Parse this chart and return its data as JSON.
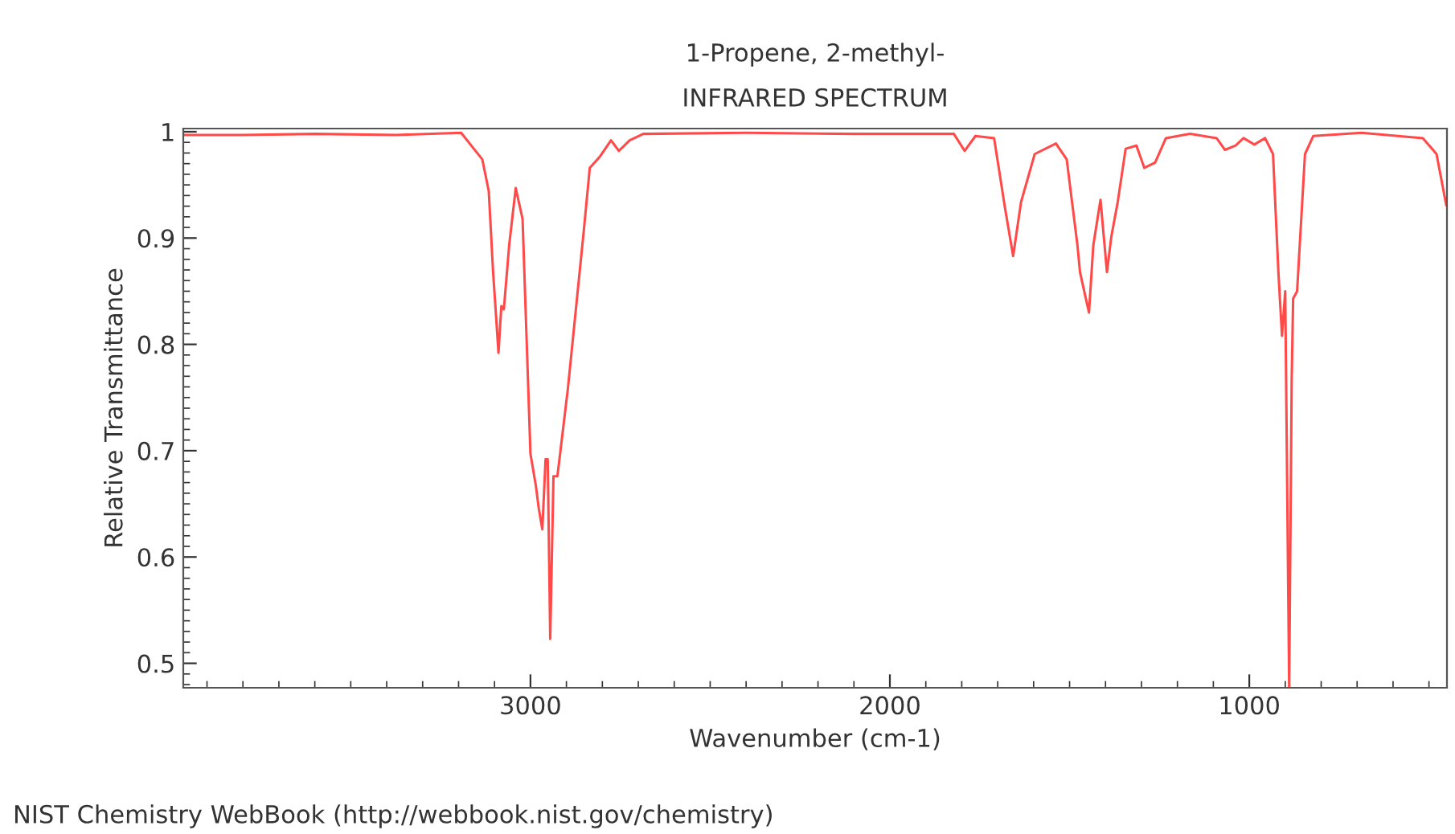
{
  "chart_data": {
    "type": "line",
    "title": "1-Propene, 2-methyl-",
    "subtitle": "INFRARED SPECTRUM",
    "xlabel": "Wavenumber (cm-1)",
    "ylabel": "Relative Transmittance",
    "annotations": [
      "NIST Chemistry WebBook (http://webbook.nist.gov/chemistry)"
    ],
    "series": [
      {
        "color": "#ff4a4a",
        "x": [
          3966,
          3800,
          3600,
          3372,
          3193,
          3134,
          3116,
          3104,
          3097,
          3089,
          3081,
          3074,
          3059,
          3041,
          3022,
          3000,
          2985,
          2977,
          2967,
          2958,
          2952,
          2945,
          2936,
          2925,
          2896,
          2851,
          2835,
          2806,
          2776,
          2754,
          2724,
          2686,
          2400,
          2100,
          1822,
          1792,
          1762,
          1710,
          1680,
          1657,
          1635,
          1597,
          1538,
          1508,
          1478,
          1471,
          1456,
          1446,
          1434,
          1414,
          1396,
          1384,
          1366,
          1344,
          1314,
          1292,
          1262,
          1232,
          1165,
          1091,
          1068,
          1038,
          1016,
          986,
          956,
          934,
          919,
          909,
          900,
          889,
          882,
          878,
          867,
          845,
          822,
          688,
          517,
          479,
          452
        ],
        "values": [
          0.997,
          0.997,
          0.998,
          0.997,
          0.999,
          0.974,
          0.944,
          0.868,
          0.833,
          0.792,
          0.836,
          0.833,
          0.894,
          0.947,
          0.918,
          0.697,
          0.667,
          0.646,
          0.626,
          0.692,
          0.692,
          0.523,
          0.676,
          0.676,
          0.758,
          0.909,
          0.966,
          0.977,
          0.992,
          0.982,
          0.992,
          0.998,
          0.999,
          0.998,
          0.998,
          0.982,
          0.996,
          0.994,
          0.929,
          0.883,
          0.934,
          0.979,
          0.989,
          0.974,
          0.893,
          0.868,
          0.845,
          0.83,
          0.893,
          0.936,
          0.868,
          0.901,
          0.934,
          0.984,
          0.987,
          0.966,
          0.971,
          0.994,
          0.998,
          0.994,
          0.983,
          0.987,
          0.994,
          0.988,
          0.994,
          0.979,
          0.868,
          0.808,
          0.85,
          0.478,
          0.767,
          0.843,
          0.85,
          0.979,
          0.996,
          0.999,
          0.994,
          0.979,
          0.931
        ]
      }
    ],
    "xlim": [
      3966,
      450
    ],
    "ylim": [
      0.477,
      1.003
    ],
    "xticks": [
      3000,
      2000,
      1000
    ],
    "yticks": [
      0.5,
      0.6,
      0.7,
      0.8,
      0.9,
      1
    ],
    "grid": false,
    "legend": false,
    "marker": "none",
    "line_style": "solid"
  }
}
